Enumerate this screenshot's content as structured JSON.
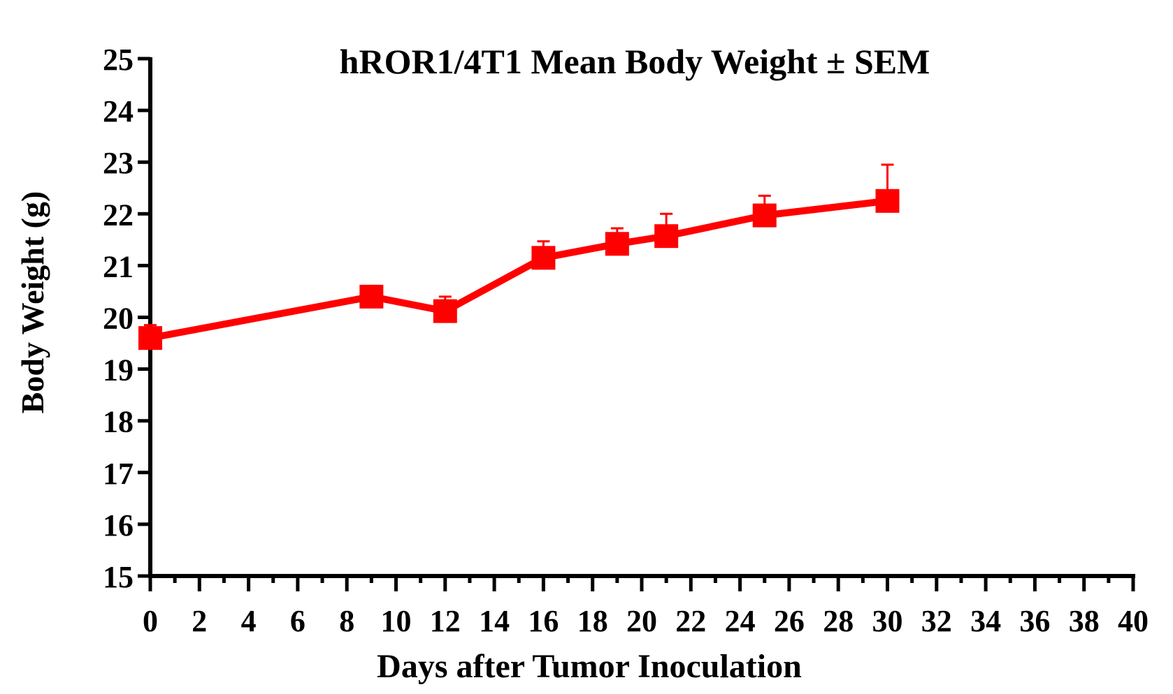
{
  "chart_data": {
    "type": "line",
    "title": "hROR1/4T1 Mean Body Weight ± SEM",
    "xlabel": "Days after Tumor Inoculation",
    "ylabel": "Body Weight (g)",
    "xlim": [
      0,
      40
    ],
    "ylim": [
      15,
      25
    ],
    "xticks": [
      0,
      2,
      4,
      6,
      8,
      10,
      12,
      14,
      16,
      18,
      20,
      22,
      24,
      26,
      28,
      30,
      32,
      34,
      36,
      38,
      40
    ],
    "yticks": [
      15,
      16,
      17,
      18,
      19,
      20,
      21,
      22,
      23,
      24,
      25
    ],
    "grid": false,
    "series": [
      {
        "color": "#ff0000",
        "marker": "square",
        "x": [
          0,
          9,
          12,
          16,
          19,
          21,
          25,
          30
        ],
        "y": [
          19.6,
          20.4,
          20.12,
          21.15,
          21.42,
          21.57,
          21.97,
          22.25
        ],
        "sem": [
          0.25,
          0.05,
          0.28,
          0.32,
          0.3,
          0.43,
          0.38,
          0.7
        ]
      }
    ]
  }
}
